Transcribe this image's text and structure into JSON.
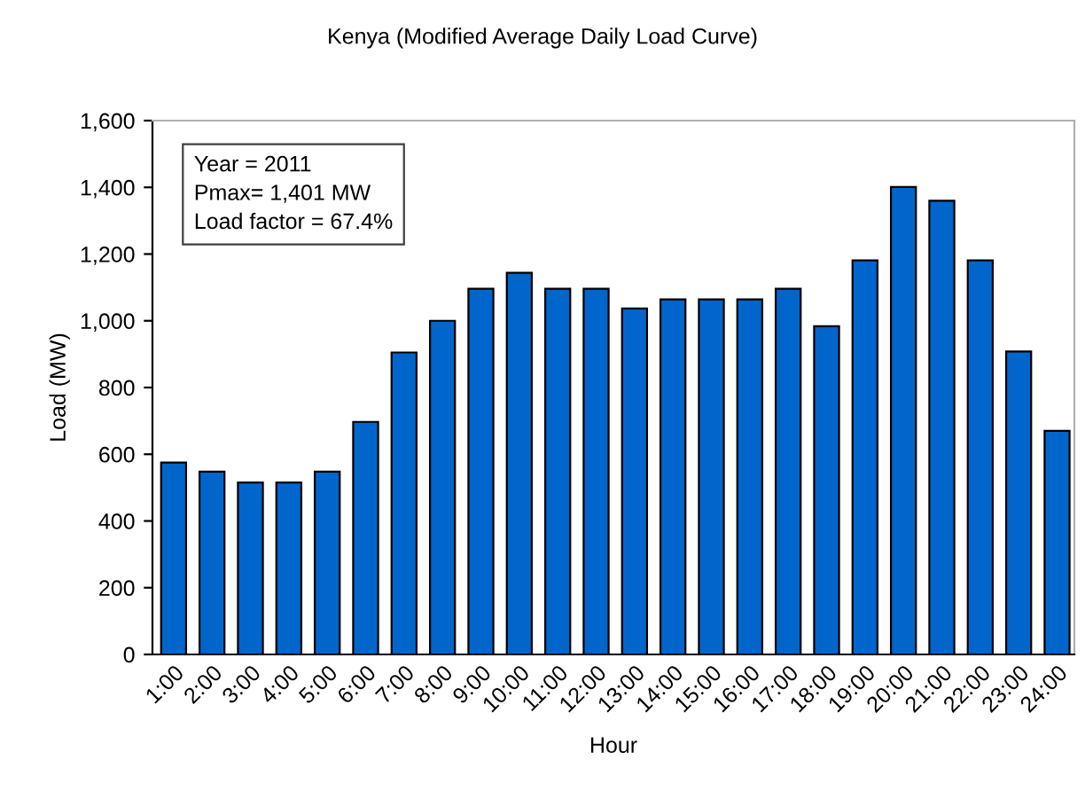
{
  "chart_data": {
    "type": "bar",
    "title": "Kenya (Modified Average Daily Load Curve)",
    "xlabel": "Hour",
    "ylabel": "Load (MW)",
    "categories": [
      "1:00",
      "2:00",
      "3:00",
      "4:00",
      "5:00",
      "6:00",
      "7:00",
      "8:00",
      "9:00",
      "10:00",
      "11:00",
      "12:00",
      "13:00",
      "14:00",
      "15:00",
      "16:00",
      "17:00",
      "18:00",
      "19:00",
      "20:00",
      "21:00",
      "22:00",
      "23:00",
      "24:00"
    ],
    "values": [
      575,
      548,
      515,
      515,
      548,
      697,
      905,
      1000,
      1096,
      1144,
      1096,
      1096,
      1037,
      1064,
      1064,
      1064,
      1096,
      984,
      1181,
      1401,
      1360,
      1181,
      908,
      670
    ],
    "color": "#0066cc",
    "ylim": [
      0,
      1600
    ],
    "yticks": [
      {
        "value": 0,
        "label": "0"
      },
      {
        "value": 200,
        "label": "200"
      },
      {
        "value": 400,
        "label": "400"
      },
      {
        "value": 600,
        "label": "600"
      },
      {
        "value": 800,
        "label": "800"
      },
      {
        "value": 1000,
        "label": "1,000"
      },
      {
        "value": 1200,
        "label": "1,200"
      },
      {
        "value": 1400,
        "label": "1,400"
      },
      {
        "value": 1600,
        "label": "1,600"
      }
    ],
    "grid": false,
    "annotations": [
      "Year = 2011\nPmax= 1,401 MW\nLoad factor = 67.4%"
    ]
  }
}
